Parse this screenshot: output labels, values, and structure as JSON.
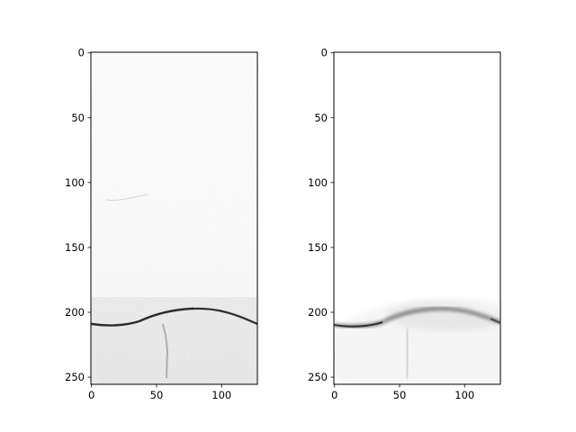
{
  "panels": [
    {
      "id": "left",
      "image_kind": "noisy grayscale ultrasound-like image",
      "colormap": "gray_r",
      "data_extent": {
        "x": [
          0,
          127
        ],
        "y": [
          0,
          255
        ]
      },
      "xticks": [
        "0",
        "50",
        "100"
      ],
      "yticks": [
        "0",
        "50",
        "100",
        "150",
        "200",
        "250"
      ]
    },
    {
      "id": "right",
      "image_kind": "denoised grayscale ultrasound-like image",
      "colormap": "gray_r",
      "data_extent": {
        "x": [
          0,
          127
        ],
        "y": [
          0,
          255
        ]
      },
      "xticks": [
        "0",
        "50",
        "100"
      ],
      "yticks": [
        "0",
        "50",
        "100",
        "150",
        "200",
        "250"
      ]
    }
  ]
}
